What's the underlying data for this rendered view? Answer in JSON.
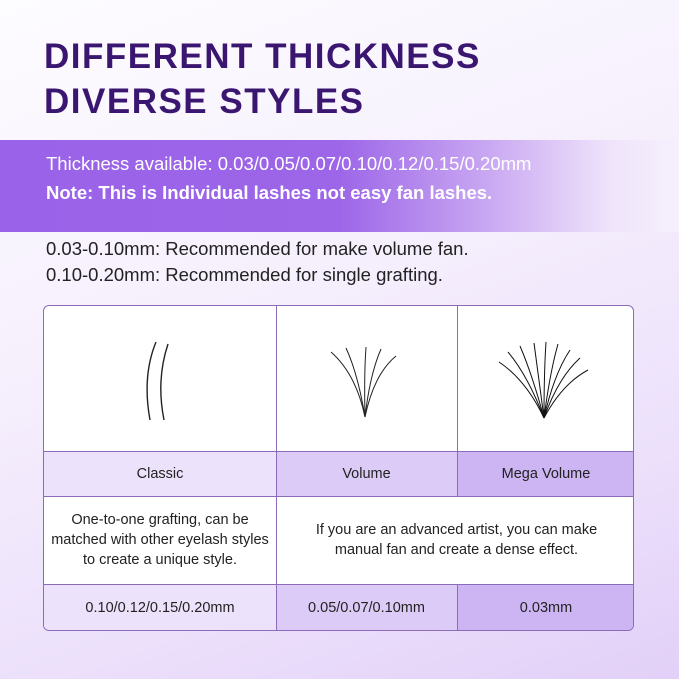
{
  "title": {
    "line1": "DIFFERENT THICKNESS",
    "line2": "DIVERSE STYLES"
  },
  "band": {
    "thickness": "Thickness available: 0.03/0.05/0.07/0.10/0.12/0.15/0.20mm",
    "note": "Note: This is Individual lashes not easy fan lashes."
  },
  "recommendations": [
    "0.03-0.10mm: Recommended for make volume fan.",
    "0.10-0.20mm: Recommended for single grafting."
  ],
  "table": {
    "styles": [
      "Classic",
      "Volume",
      "Mega Volume"
    ],
    "classic_desc": "One-to-one grafting, can be matched with other eyelash styles to create a unique style.",
    "volume_desc": "If you are an advanced artist, you can make manual fan and create a dense effect.",
    "sizes": [
      "0.10/0.12/0.15/0.20mm",
      "0.05/0.07/0.10mm",
      "0.03mm"
    ]
  },
  "colors": {
    "title": "#3a1670",
    "band": "#9a62e8",
    "border": "#8c6bb8"
  }
}
